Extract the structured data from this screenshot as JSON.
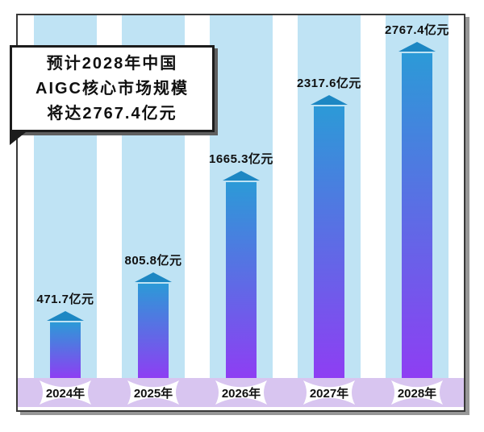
{
  "callout": {
    "lines": [
      "预计2028年中国",
      "AIGC核心市场规模",
      "将达2767.4亿元"
    ]
  },
  "chart_data": {
    "type": "bar",
    "title": "预计2028年中国AIGC核心市场规模将达2767.4亿元",
    "categories": [
      "2024年",
      "2025年",
      "2026年",
      "2027年",
      "2028年"
    ],
    "values": [
      471.7,
      805.8,
      1665.3,
      2317.6,
      2767.4
    ],
    "unit": "亿元",
    "labels": [
      "471.7亿元",
      "805.8亿元",
      "1665.3亿元",
      "2317.6亿元",
      "2767.4亿元"
    ],
    "xlabel": "",
    "ylabel": "",
    "ylim": [
      0,
      2800
    ],
    "grid": false,
    "legend_position": "none"
  },
  "colors": {
    "column_bg": "#bfe3f4",
    "band_bg": "#d8c5f0",
    "bar_top": "#2c9ad7",
    "bar_bottom": "#8e3ef3",
    "cap": "#1d87c3",
    "frame_border": "#383838",
    "frame_shadow": "#979797",
    "callout_border": "#1c1c1c",
    "callout_shadow": "#5f5f5f",
    "ribbon_bg": "#ffffff",
    "label_color": "#101010"
  }
}
